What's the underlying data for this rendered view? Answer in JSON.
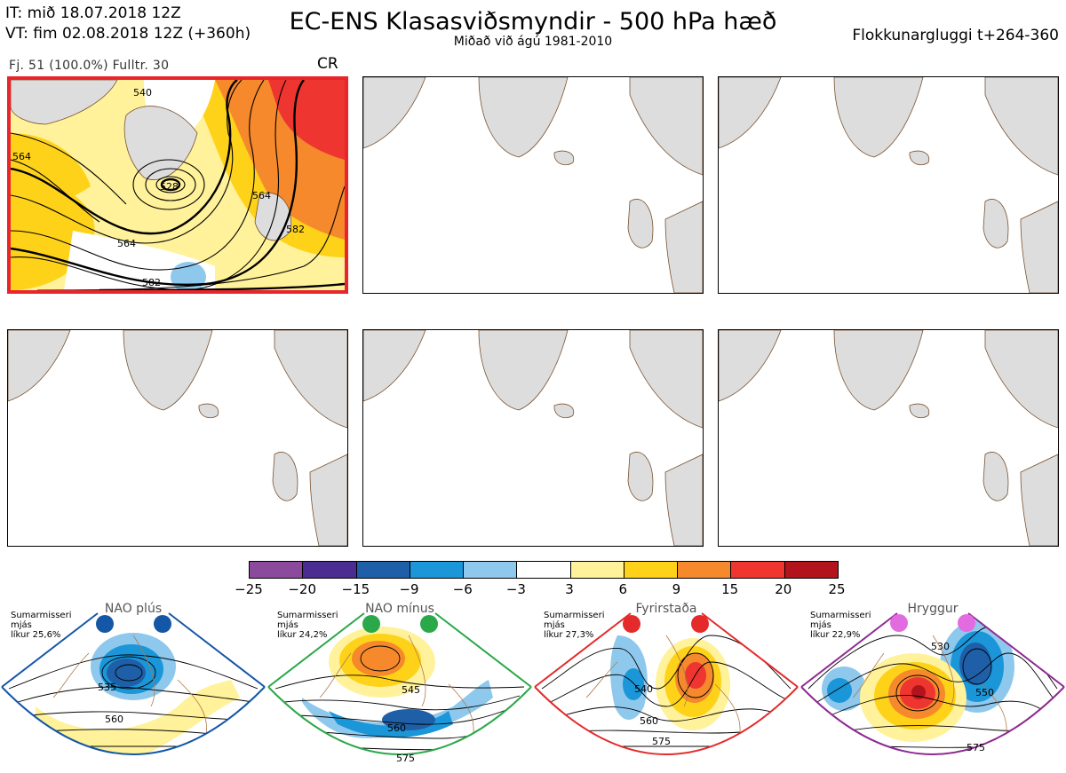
{
  "header": {
    "it_line": "IT: mið 18.07.2018 12Z",
    "vt_line": "VT: fim 02.08.2018 12Z  (+360h)",
    "title": "EC-ENS Klasasviðsmyndir - 500 hPa hæð",
    "subtitle": "Miðað við ágú 1981-2010",
    "window": "Flokkunargluggi t+264-360"
  },
  "cluster": {
    "info": "Fj. 51 (100.0%)   Fulltr. 30",
    "regime_tag": "CR",
    "contour_labels": [
      "540",
      "564",
      "528",
      "564",
      "564",
      "582",
      "582"
    ]
  },
  "colorbar": {
    "colors": [
      "#8b4a9c",
      "#4b2d91",
      "#1f5fa8",
      "#1a96d9",
      "#8ec8ec",
      "#ffffff",
      "#fff29a",
      "#ffd21a",
      "#f5892c",
      "#ee3530",
      "#b3141b"
    ],
    "ticks": [
      "−25",
      "−20",
      "−15",
      "−9",
      "−6",
      "−3",
      "3",
      "6",
      "9",
      "15",
      "20",
      "25"
    ]
  },
  "regimes": [
    {
      "name": "NAO plús",
      "season": "Sumarmisseri",
      "level": "mjás",
      "prob": "líkur 25,6%",
      "color": "#1457a6",
      "dot": "#1457a6",
      "labels": [
        "535",
        "560"
      ]
    },
    {
      "name": "NAO mínus",
      "season": "Sumarmisseri",
      "level": "mjás",
      "prob": "líkur 24,2%",
      "color": "#2aa84a",
      "dot": "#2aa84a",
      "labels": [
        "545",
        "560",
        "575"
      ]
    },
    {
      "name": "Fyrirstaða",
      "season": "Sumarmisseri",
      "level": "mjás",
      "prob": "líkur 27,3%",
      "color": "#e42a2a",
      "dot": "#e42a2a",
      "labels": [
        "540",
        "560",
        "575"
      ]
    },
    {
      "name": "Hryggur",
      "season": "Sumarmisseri",
      "level": "mjás",
      "prob": "líkur 22,9%",
      "color": "#8e2a92",
      "dot": "#e36be0",
      "labels": [
        "530",
        "550",
        "575"
      ]
    }
  ]
}
